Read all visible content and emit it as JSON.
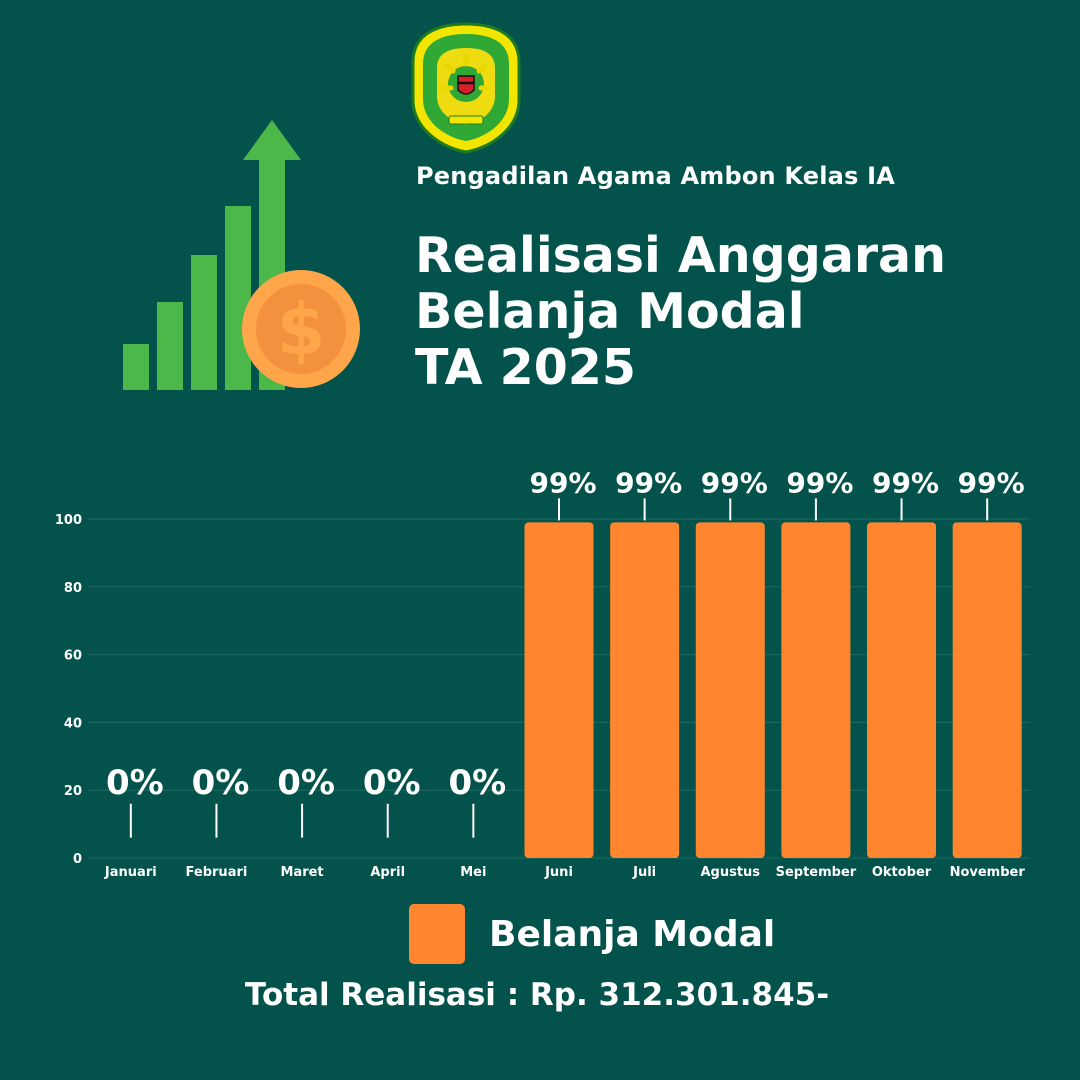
{
  "header": {
    "organization": "Pengadilan Agama Ambon Kelas IA",
    "title_lines": [
      "Realisasi Anggaran",
      "Belanja Modal",
      "TA 2025"
    ]
  },
  "logo": {
    "icon": "court-seal-icon",
    "ring_text": "PENGADILAN AGAMA AMBON KELAS IA"
  },
  "illustration": {
    "icon": "growth-chart-dollar-coin-icon"
  },
  "legend": {
    "label": "Belanja Modal",
    "color": "#ff862f"
  },
  "footer": {
    "total_text": "Total Realisasi : Rp. 312.301.845-"
  },
  "colors": {
    "background": "#03524b",
    "bar": "#ff862f",
    "grid": "#1e6b62",
    "icon_green": "#4cb84a",
    "coin": "#ffa64a",
    "coin_inner": "#f4913e"
  },
  "chart_data": {
    "type": "bar",
    "categories": [
      "Januari",
      "Februari",
      "Maret",
      "April",
      "Mei",
      "Juni",
      "Juli",
      "Agustus",
      "September",
      "Oktober",
      "November"
    ],
    "series": [
      {
        "name": "Belanja Modal",
        "values": [
          0,
          0,
          0,
          0,
          0,
          99,
          99,
          99,
          99,
          99,
          99
        ]
      }
    ],
    "data_labels": [
      "0%",
      "0%",
      "0%",
      "0%",
      "0%",
      "99%",
      "99%",
      "99%",
      "99%",
      "99%",
      "99%"
    ],
    "yticks": [
      0,
      20,
      40,
      60,
      80,
      100
    ],
    "ylim": [
      0,
      100
    ],
    "grid": true,
    "title": "",
    "xlabel": "",
    "ylabel": "",
    "legend_position": "bottom"
  }
}
